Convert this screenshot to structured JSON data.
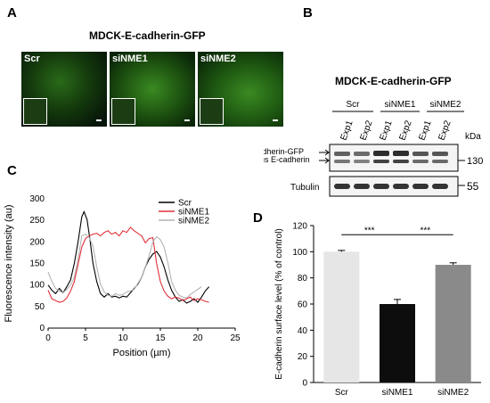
{
  "panelA": {
    "letter": "A",
    "title": "MDCK-E-cadherin-GFP",
    "images": [
      {
        "label": "Scr"
      },
      {
        "label": "siNME1"
      },
      {
        "label": "siNME2"
      }
    ]
  },
  "panelB": {
    "letter": "B",
    "title": "MDCK-E-cadherin-GFP",
    "groups": [
      "Scr",
      "siNME1",
      "siNME2"
    ],
    "lanes": [
      "Exp1",
      "Exp2",
      "Exp1",
      "Exp2",
      "Exp1",
      "Exp2"
    ],
    "kda_label": "kDa",
    "band_labels": [
      "E-cadherin-GFP",
      "endogenous E-cadherin"
    ],
    "marker_130": "130",
    "tubulin_label": "Tubulin",
    "marker_55": "55"
  },
  "panelC": {
    "letter": "C"
  },
  "panelD": {
    "letter": "D"
  },
  "chart_data": [
    {
      "type": "line",
      "xlabel": "Position (µm)",
      "ylabel": "Fluorescence intensity (au)",
      "xlim": [
        0,
        25
      ],
      "ylim": [
        0,
        300
      ],
      "xticks": [
        0,
        5,
        10,
        15,
        20,
        25
      ],
      "yticks": [
        0,
        50,
        100,
        150,
        200,
        250,
        300
      ],
      "legend_position": "top-right",
      "series": [
        {
          "name": "Scr",
          "color": "#000000",
          "points": [
            [
              0,
              100
            ],
            [
              0.5,
              88
            ],
            [
              1,
              80
            ],
            [
              1.5,
              92
            ],
            [
              2,
              82
            ],
            [
              2.5,
              96
            ],
            [
              3,
              112
            ],
            [
              3.5,
              150
            ],
            [
              4,
              200
            ],
            [
              4.5,
              258
            ],
            [
              4.8,
              270
            ],
            [
              5.2,
              252
            ],
            [
              5.6,
              205
            ],
            [
              6,
              150
            ],
            [
              6.5,
              108
            ],
            [
              7,
              80
            ],
            [
              7.5,
              72
            ],
            [
              8,
              80
            ],
            [
              8.5,
              72
            ],
            [
              9,
              74
            ],
            [
              9.5,
              70
            ],
            [
              10,
              74
            ],
            [
              10.5,
              72
            ],
            [
              11,
              82
            ],
            [
              11.5,
              92
            ],
            [
              12,
              102
            ],
            [
              12.5,
              118
            ],
            [
              13,
              142
            ],
            [
              13.5,
              160
            ],
            [
              14,
              172
            ],
            [
              14.5,
              178
            ],
            [
              15,
              165
            ],
            [
              15.5,
              142
            ],
            [
              16,
              112
            ],
            [
              16.5,
              88
            ],
            [
              17,
              72
            ],
            [
              17.5,
              62
            ],
            [
              18,
              66
            ],
            [
              18.5,
              58
            ],
            [
              19,
              62
            ],
            [
              19.5,
              68
            ],
            [
              20,
              60
            ],
            [
              20.5,
              72
            ],
            [
              21,
              86
            ],
            [
              21.5,
              96
            ]
          ]
        },
        {
          "name": "siNME1",
          "color": "#e0303a",
          "points": [
            [
              0,
              88
            ],
            [
              0.5,
              68
            ],
            [
              1,
              64
            ],
            [
              1.5,
              60
            ],
            [
              2,
              62
            ],
            [
              2.5,
              70
            ],
            [
              3,
              86
            ],
            [
              3.5,
              108
            ],
            [
              4,
              148
            ],
            [
              4.5,
              188
            ],
            [
              5,
              208
            ],
            [
              5.5,
              214
            ],
            [
              6,
              218
            ],
            [
              6.5,
              220
            ],
            [
              7,
              214
            ],
            [
              7.5,
              222
            ],
            [
              8,
              226
            ],
            [
              8.5,
              218
            ],
            [
              9,
              222
            ],
            [
              9.5,
              214
            ],
            [
              10,
              226
            ],
            [
              10.5,
              222
            ],
            [
              11,
              234
            ],
            [
              11.5,
              226
            ],
            [
              12,
              220
            ],
            [
              12.5,
              214
            ],
            [
              13,
              198
            ],
            [
              13.5,
              208
            ],
            [
              14,
              210
            ],
            [
              14.5,
              150
            ],
            [
              15,
              108
            ],
            [
              15.5,
              86
            ],
            [
              16,
              74
            ],
            [
              16.5,
              68
            ],
            [
              17,
              72
            ],
            [
              17.5,
              70
            ],
            [
              18,
              64
            ],
            [
              18.5,
              68
            ],
            [
              19,
              72
            ],
            [
              19.5,
              64
            ],
            [
              20,
              68
            ],
            [
              20.5,
              66
            ],
            [
              21,
              62
            ],
            [
              21.5,
              60
            ]
          ]
        },
        {
          "name": "siNME2",
          "color": "#b4b4b4",
          "points": [
            [
              0,
              130
            ],
            [
              0.5,
              108
            ],
            [
              1,
              92
            ],
            [
              1.5,
              86
            ],
            [
              2,
              82
            ],
            [
              2.5,
              90
            ],
            [
              3,
              100
            ],
            [
              3.5,
              118
            ],
            [
              4,
              160
            ],
            [
              4.5,
              214
            ],
            [
              5,
              218
            ],
            [
              5.5,
              210
            ],
            [
              6,
              190
            ],
            [
              6.5,
              142
            ],
            [
              7,
              102
            ],
            [
              7.5,
              84
            ],
            [
              8,
              76
            ],
            [
              8.5,
              74
            ],
            [
              9,
              80
            ],
            [
              9.5,
              76
            ],
            [
              10,
              78
            ],
            [
              10.5,
              84
            ],
            [
              11,
              86
            ],
            [
              11.5,
              90
            ],
            [
              12,
              104
            ],
            [
              12.5,
              118
            ],
            [
              13,
              142
            ],
            [
              13.5,
              168
            ],
            [
              14,
              200
            ],
            [
              14.5,
              212
            ],
            [
              15,
              205
            ],
            [
              15.5,
              188
            ],
            [
              16,
              152
            ],
            [
              16.5,
              108
            ],
            [
              17,
              88
            ],
            [
              17.5,
              76
            ],
            [
              18,
              72
            ],
            [
              18.5,
              70
            ],
            [
              19,
              78
            ],
            [
              19.5,
              84
            ],
            [
              20,
              90
            ],
            [
              20.5,
              96
            ]
          ]
        }
      ]
    },
    {
      "type": "bar",
      "ylabel": "E-cadherin surface level (% of control)",
      "ylim": [
        0,
        120
      ],
      "yticks": [
        0,
        20,
        40,
        60,
        80,
        100,
        120
      ],
      "categories": [
        "Scr",
        "siNME1",
        "siNME2"
      ],
      "values": [
        100,
        60,
        90
      ],
      "errors": [
        1,
        3.5,
        1.5
      ],
      "colors": [
        "#e6e6e6",
        "#0d0d0d",
        "#8a8a8a"
      ],
      "significance": [
        {
          "from": "Scr",
          "to": "siNME1",
          "label": "***"
        },
        {
          "from": "siNME1",
          "to": "siNME2",
          "label": "***"
        }
      ]
    }
  ]
}
